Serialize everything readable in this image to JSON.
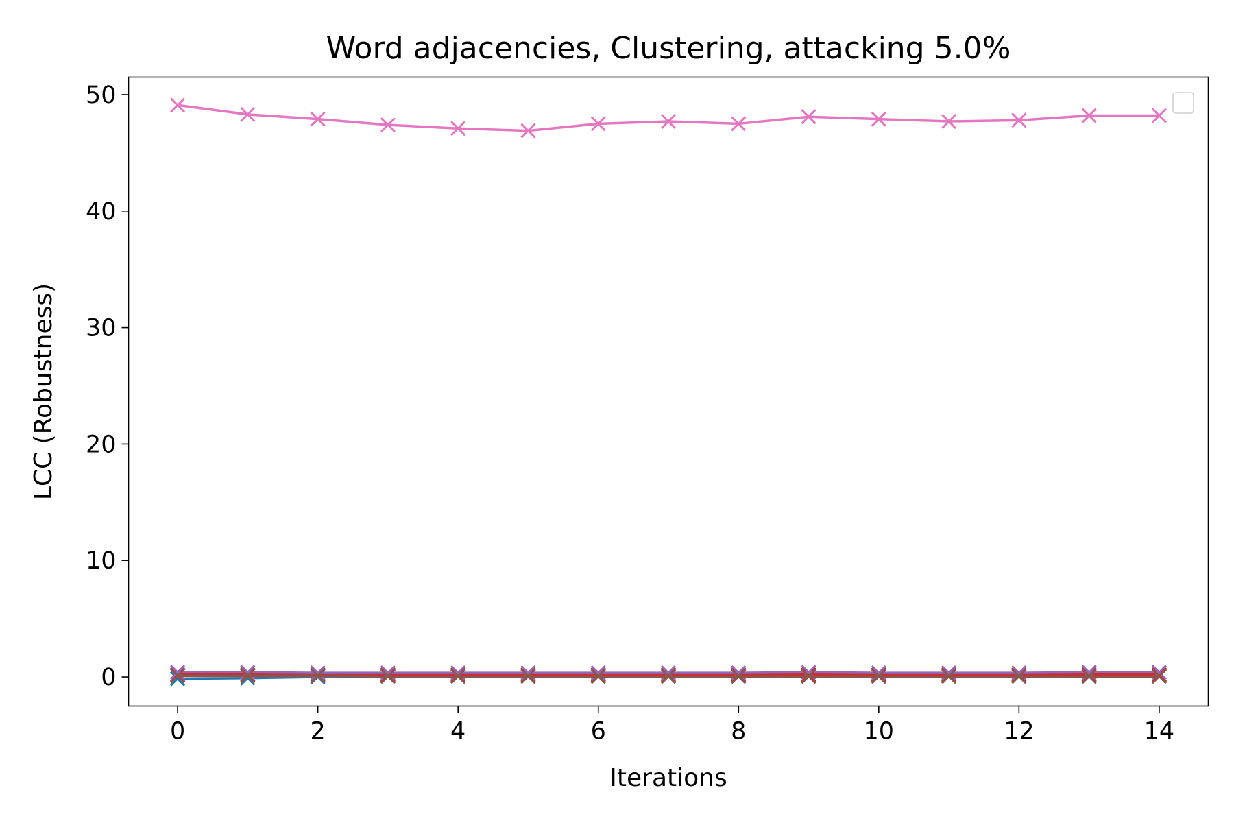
{
  "chart_data": {
    "type": "line",
    "title": "Word adjacencies, Clustering, attacking 5.0%",
    "xlabel": "Iterations",
    "ylabel": "LCC (Robustness)",
    "xlim": [
      -0.7,
      14.7
    ],
    "ylim": [
      -2.5,
      51.5
    ],
    "xticks": [
      0,
      2,
      4,
      6,
      8,
      10,
      12,
      14
    ],
    "yticks": [
      0,
      10,
      20,
      30,
      40,
      50
    ],
    "grid": false,
    "legend": {
      "placement": "top-right",
      "entries": []
    },
    "marker": "x",
    "x": [
      0,
      1,
      2,
      3,
      4,
      5,
      6,
      7,
      8,
      9,
      10,
      11,
      12,
      13,
      14
    ],
    "series": [
      {
        "color": "#1f77b4",
        "values": [
          -0.15,
          -0.1,
          0.0,
          0.05,
          0.05,
          0.05,
          0.05,
          0.05,
          0.05,
          0.05,
          0.05,
          0.05,
          0.05,
          0.05,
          0.05
        ]
      },
      {
        "color": "#ff7f0e",
        "values": [
          0.1,
          0.1,
          0.1,
          0.1,
          0.1,
          0.1,
          0.1,
          0.1,
          0.1,
          0.1,
          0.1,
          0.1,
          0.1,
          0.1,
          0.1
        ]
      },
      {
        "color": "#2ca02c",
        "values": [
          0.15,
          0.15,
          0.15,
          0.15,
          0.15,
          0.15,
          0.15,
          0.15,
          0.15,
          0.15,
          0.15,
          0.15,
          0.15,
          0.15,
          0.15
        ]
      },
      {
        "color": "#d62728",
        "values": [
          0.2,
          0.2,
          0.2,
          0.2,
          0.2,
          0.2,
          0.2,
          0.2,
          0.2,
          0.2,
          0.2,
          0.2,
          0.2,
          0.2,
          0.2
        ]
      },
      {
        "color": "#9467bd",
        "values": [
          0.4,
          0.4,
          0.35,
          0.35,
          0.35,
          0.35,
          0.35,
          0.35,
          0.35,
          0.4,
          0.35,
          0.35,
          0.35,
          0.4,
          0.4
        ]
      },
      {
        "color": "#8c564b",
        "values": [
          0.1,
          0.1,
          0.1,
          0.05,
          0.05,
          0.05,
          0.05,
          0.05,
          0.05,
          0.05,
          0.05,
          0.05,
          0.05,
          0.05,
          0.05
        ]
      },
      {
        "color": "#e377c2",
        "values": [
          49.1,
          48.3,
          47.9,
          47.4,
          47.1,
          46.9,
          47.5,
          47.7,
          47.5,
          48.1,
          47.9,
          47.7,
          47.8,
          48.2,
          48.2
        ]
      }
    ]
  }
}
